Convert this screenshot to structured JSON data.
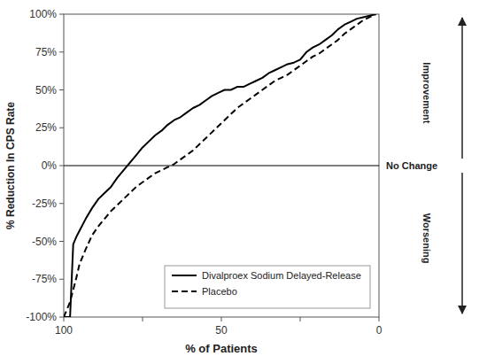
{
  "chart_data": {
    "type": "line",
    "xlabel": "% of Patients",
    "ylabel": "% Reduction In CPS Rate",
    "xlim": [
      100,
      0
    ],
    "ylim": [
      -100,
      100
    ],
    "xticks": [
      100,
      {
        "value": 75,
        "label": null
      },
      50,
      {
        "value": 25,
        "label": null
      },
      0
    ],
    "yticks": [
      {
        "value": -100,
        "label": "-100%"
      },
      {
        "value": -75,
        "label": "-75%"
      },
      {
        "value": -50,
        "label": "-50%"
      },
      {
        "value": -25,
        "label": "-25%"
      },
      {
        "value": 0,
        "label": "0%"
      },
      {
        "value": 25,
        "label": "25%"
      },
      {
        "value": 50,
        "label": "50%"
      },
      {
        "value": 75,
        "label": "75%"
      },
      {
        "value": 100,
        "label": "100%"
      }
    ],
    "grid": false,
    "legend": "lower right",
    "reference_line": 0,
    "annotations": [
      "Improvement",
      "No Change",
      "Worsening"
    ],
    "x": [
      100,
      98,
      97,
      96,
      95,
      93,
      91,
      89,
      87,
      85,
      83,
      81,
      79,
      77,
      75,
      73,
      71,
      69,
      67,
      65,
      63,
      61,
      59,
      57,
      55,
      53,
      51,
      49,
      47,
      45,
      43,
      41,
      39,
      37,
      35,
      33,
      31,
      29,
      27,
      25,
      23,
      21,
      19,
      17,
      15,
      13,
      11,
      9,
      7,
      5,
      3,
      1
    ],
    "series": [
      {
        "name": "Divalproex Sodium Delayed-Release",
        "color": "#000000",
        "line_style": "solid",
        "values": [
          -100,
          -100,
          -52,
          -47,
          -43,
          -35,
          -28,
          -22,
          -18,
          -14,
          -8,
          -3,
          2,
          7,
          12,
          16,
          20,
          23,
          27,
          30,
          32,
          35,
          38,
          40,
          43,
          46,
          48,
          50,
          50,
          52,
          52,
          54,
          56,
          58,
          61,
          63,
          65,
          67,
          68,
          70,
          75,
          78,
          80,
          83,
          86,
          90,
          93,
          95,
          97,
          98,
          99,
          100
        ]
      },
      {
        "name": "Placebo",
        "color": "#000000",
        "line_style": "dashed",
        "values": [
          -100,
          -90,
          -82,
          -74,
          -65,
          -55,
          -46,
          -40,
          -35,
          -30,
          -26,
          -22,
          -18,
          -14,
          -11,
          -8,
          -5,
          -3,
          -1,
          1,
          4,
          7,
          10,
          14,
          18,
          22,
          26,
          30,
          34,
          38,
          41,
          44,
          47,
          50,
          53,
          56,
          58,
          60,
          63,
          66,
          69,
          72,
          74,
          77,
          80,
          83,
          87,
          90,
          93,
          96,
          98,
          100
        ]
      }
    ]
  }
}
